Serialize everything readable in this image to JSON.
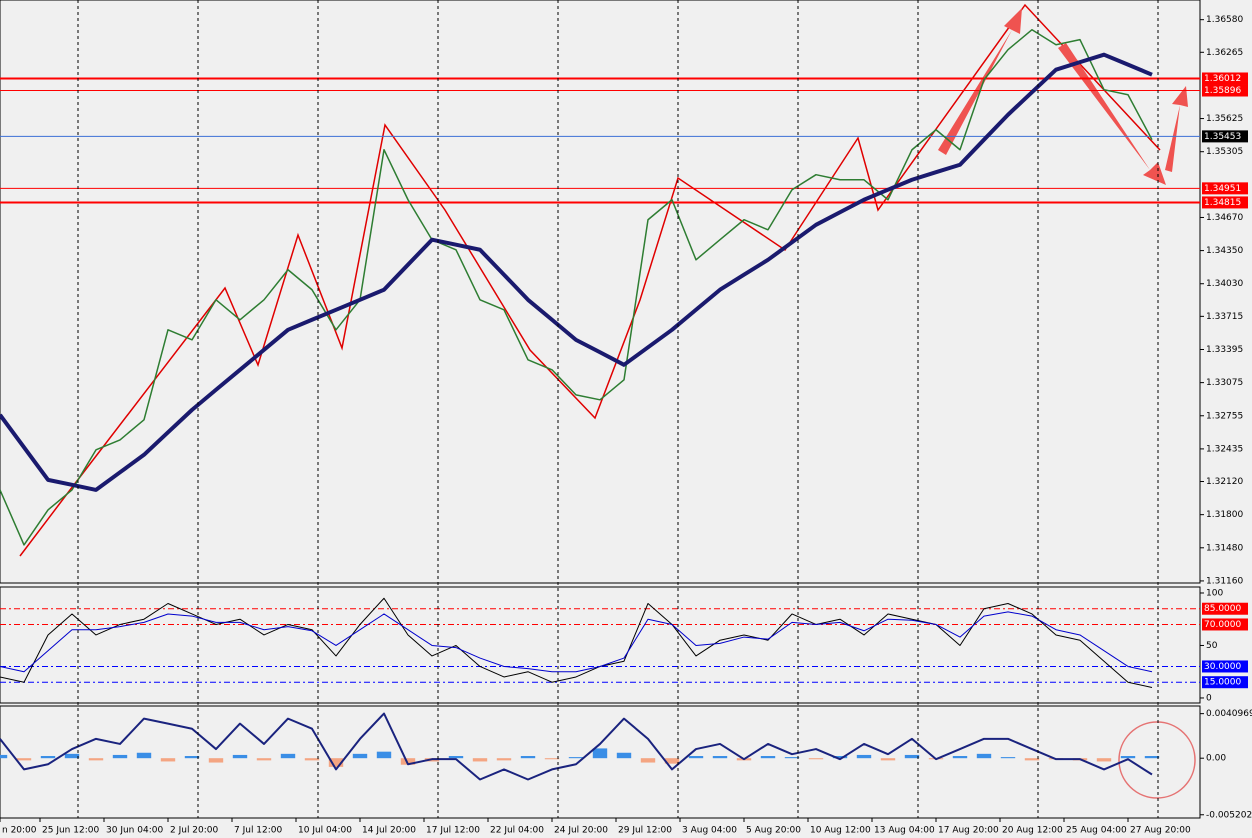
{
  "chart_data": [
    {
      "type": "line",
      "xlim": [
        0,
        300
      ],
      "ylim": [
        1.3114,
        1.3677
      ],
      "yticks": [
        {
          "value": 1.3658,
          "label": "1.36580"
        },
        {
          "value": 1.36265,
          "label": "1.36265"
        },
        {
          "value": 1.35625,
          "label": "1.35625"
        },
        {
          "value": 1.35305,
          "label": "1.35305"
        },
        {
          "value": 1.3467,
          "label": "1.34670"
        },
        {
          "value": 1.3435,
          "label": "1.34350"
        },
        {
          "value": 1.3403,
          "label": "1.34030"
        },
        {
          "value": 1.33715,
          "label": "1.33715"
        },
        {
          "value": 1.33395,
          "label": "1.33395"
        },
        {
          "value": 1.33075,
          "label": "1.33075"
        },
        {
          "value": 1.32755,
          "label": "1.32755"
        },
        {
          "value": 1.32435,
          "label": "1.32435"
        },
        {
          "value": 1.3212,
          "label": "1.32120"
        },
        {
          "value": 1.318,
          "label": "1.31800"
        },
        {
          "value": 1.3148,
          "label": "1.31480"
        },
        {
          "value": 1.3116,
          "label": "1.31160"
        }
      ],
      "levels": [
        {
          "value": 1.36012,
          "label": "1.36012",
          "color": "#ff0000"
        },
        {
          "value": 1.35896,
          "label": "1.35896",
          "color": "#ff0000"
        },
        {
          "value": 1.35453,
          "label": "1.35453",
          "color": "#000000"
        },
        {
          "value": 1.34951,
          "label": "1.34951",
          "color": "#ff0000"
        },
        {
          "value": 1.34815,
          "label": "1.34815",
          "color": "#ff0000"
        }
      ],
      "x": [
        0,
        6,
        12,
        18,
        24,
        30,
        36,
        42,
        48,
        54,
        60,
        66,
        72,
        78,
        84,
        90,
        96,
        102,
        108,
        114,
        120,
        126,
        132,
        138,
        144,
        150,
        156,
        162,
        168,
        174,
        180,
        186,
        192,
        198,
        204,
        210,
        216,
        222,
        228,
        234,
        240,
        246,
        252,
        258,
        264,
        270,
        276,
        282,
        288
      ],
      "series": [
        {
          "color": "#2e7d32",
          "width": 1.5,
          "values": [
            1.32039,
            1.31508,
            1.31846,
            1.32039,
            1.32426,
            1.32522,
            1.32716,
            1.33585,
            1.33488,
            1.33875,
            1.33682,
            1.33875,
            1.34165,
            1.33972,
            1.33585,
            1.33875,
            1.35324,
            1.34841,
            1.34455,
            1.34358,
            1.33875,
            1.33778,
            1.33295,
            1.33199,
            1.32957,
            1.32909,
            1.33102,
            1.34648,
            1.34841,
            1.34261,
            1.34455,
            1.34648,
            1.34551,
            1.34938,
            1.35083,
            1.35034,
            1.35034,
            1.34841,
            1.35324,
            1.35517,
            1.35324,
            1.36,
            1.3629,
            1.36483,
            1.36338,
            1.36387,
            1.35904,
            1.35855,
            1.35421
          ]
        },
        {
          "color": "#1a1a6e",
          "width": 4,
          "values": [
            1.32764,
            1.3245,
            1.32136,
            1.32088,
            1.32039,
            1.32209,
            1.32378,
            1.32595,
            1.32812,
            1.33006,
            1.33199,
            1.33392,
            1.33585,
            1.33682,
            1.33778,
            1.33875,
            1.33972,
            1.34214,
            1.34455,
            1.34407,
            1.34358,
            1.34117,
            1.33875,
            1.33682,
            1.33488,
            1.33368,
            1.33247,
            1.33416,
            1.33585,
            1.33779,
            1.33972,
            1.34117,
            1.34261,
            1.3443,
            1.34599,
            1.3472,
            1.34841,
            1.34938,
            1.35034,
            1.35107,
            1.35179,
            1.35421,
            1.35662,
            1.3588,
            1.36097,
            1.3617,
            1.36242,
            1.36146,
            1.36049
          ]
        }
      ]
    },
    {
      "type": "line",
      "xlim": [
        0,
        300
      ],
      "ylim": [
        -4.8,
        105.7
      ],
      "yticks": [
        100,
        50,
        0
      ],
      "levels": [
        {
          "value": 85,
          "label": "85.0000",
          "color": "#ff0000"
        },
        {
          "value": 70,
          "label": "70.0000",
          "color": "#ff0000"
        },
        {
          "value": 30,
          "label": "30.0000",
          "color": "#0000ff"
        },
        {
          "value": 15,
          "label": "15.0000",
          "color": "#0000ff"
        }
      ],
      "x": [
        0,
        6,
        12,
        18,
        24,
        30,
        36,
        42,
        48,
        54,
        60,
        66,
        72,
        78,
        84,
        90,
        96,
        102,
        108,
        114,
        120,
        126,
        132,
        138,
        144,
        150,
        156,
        162,
        168,
        174,
        180,
        186,
        192,
        198,
        204,
        210,
        216,
        222,
        228,
        234,
        240,
        246,
        252,
        258,
        264,
        270,
        276,
        282,
        288
      ],
      "series": [
        {
          "color": "#000000",
          "width": 1,
          "values": [
            20,
            15,
            60,
            80,
            60,
            70,
            75,
            90,
            80,
            70,
            75,
            60,
            70,
            65,
            40,
            70,
            95,
            60,
            40,
            50,
            30,
            20,
            25,
            15,
            20,
            30,
            35,
            90,
            70,
            40,
            55,
            60,
            55,
            80,
            70,
            75,
            60,
            80,
            75,
            70,
            50,
            85,
            90,
            80,
            60,
            55,
            35,
            15,
            10
          ]
        },
        {
          "color": "#0000cc",
          "width": 1,
          "values": [
            30,
            25,
            45,
            65,
            65,
            68,
            72,
            80,
            78,
            72,
            72,
            65,
            68,
            64,
            50,
            65,
            80,
            65,
            50,
            48,
            38,
            30,
            28,
            25,
            25,
            30,
            38,
            75,
            70,
            50,
            52,
            58,
            56,
            72,
            70,
            72,
            64,
            75,
            74,
            70,
            58,
            78,
            82,
            78,
            65,
            60,
            45,
            30,
            25
          ]
        }
      ]
    },
    {
      "type": "bar",
      "xlim": [
        0,
        300
      ],
      "ylim": [
        -0.0055,
        0.0048
      ],
      "yticks": [
        0.0040969,
        {
          "value": 0,
          "label": "0.00"
        },
        -0.005202
      ],
      "xticks": [
        {
          "value": 0,
          "label": "n 20:00"
        },
        {
          "value": 10,
          "label": "25 Jun 12:00"
        },
        {
          "value": 26,
          "label": "30 Jun 04:00"
        },
        {
          "value": 42,
          "label": "2 Jul 20:00"
        },
        {
          "value": 58,
          "label": "7 Jul 12:00"
        },
        {
          "value": 74,
          "label": "10 Jul 04:00"
        },
        {
          "value": 90,
          "label": "14 Jul 20:00"
        },
        {
          "value": 106,
          "label": "17 Jul 12:00"
        },
        {
          "value": 122,
          "label": "22 Jul 04:00"
        },
        {
          "value": 138,
          "label": "24 Jul 20:00"
        },
        {
          "value": 154,
          "label": "29 Jul 12:00"
        },
        {
          "value": 170,
          "label": "3 Aug 04:00"
        },
        {
          "value": 186,
          "label": "5 Aug 20:00"
        },
        {
          "value": 202,
          "label": "10 Aug 12:00"
        },
        {
          "value": 218,
          "label": "13 Aug 04:00"
        },
        {
          "value": 234,
          "label": "17 Aug 20:00"
        },
        {
          "value": 250,
          "label": "20 Aug 12:00"
        },
        {
          "value": 266,
          "label": "25 Aug 04:00"
        },
        {
          "value": 282,
          "label": "27 Aug 20:00"
        }
      ],
      "x": [
        0,
        6,
        12,
        18,
        24,
        30,
        36,
        42,
        48,
        54,
        60,
        66,
        72,
        78,
        84,
        90,
        96,
        102,
        108,
        114,
        120,
        126,
        132,
        138,
        144,
        150,
        156,
        162,
        168,
        174,
        180,
        186,
        192,
        198,
        204,
        210,
        216,
        222,
        228,
        234,
        240,
        246,
        252,
        258,
        264,
        270,
        276,
        282,
        288
      ],
      "bar_color": "#3a8ee6",
      "negative_color": "#f4a582",
      "values": [
        0.0003,
        -0.0002,
        0.0002,
        0.0004,
        -0.0002,
        0.0003,
        0.0005,
        -0.0003,
        0.0002,
        -0.0004,
        0.0003,
        -0.0002,
        0.0004,
        -0.0002,
        -0.0008,
        0.0004,
        0.0006,
        -0.0006,
        -0.0003,
        0.0002,
        -0.0003,
        -0.0002,
        0.0002,
        -0.0001,
        0.0001,
        0.0009,
        0.0005,
        -0.0004,
        -0.0005,
        0.0002,
        0.0002,
        -0.0002,
        0.0002,
        0.0001,
        -0.0001,
        0.0002,
        0.0003,
        -0.0002,
        0.0003,
        -0.0001,
        0.0002,
        0.0004,
        0.0001,
        -0.0002,
        -0.0001,
        -0.0002,
        -0.0003,
        0.0002,
        0.0002
      ],
      "series": [
        {
          "color": "#1a237e",
          "width": 2,
          "values": [
            0.00178,
            -0.00103,
            -0.00056,
            0.00084,
            0.00178,
            0.00131,
            0.00364,
            0.00318,
            0.00271,
            0.00084,
            0.00318,
            0.00131,
            0.00364,
            0.00271,
            -0.00103,
            0.00178,
            0.00411,
            -0.00056,
            -9e-05,
            -9e-05,
            -0.00196,
            -0.00103,
            -0.00196,
            -0.00103,
            -0.00056,
            0.00131,
            0.00364,
            0.00178,
            -0.00103,
            0.00084,
            0.00131,
            -9e-05,
            0.00131,
            0.00037,
            0.00084,
            -9e-05,
            0.00131,
            0.00037,
            0.00178,
            -9e-05,
            0.00084,
            0.00178,
            0.00178,
            0.00084,
            -9e-05,
            -9e-05,
            -0.00103,
            -9e-05,
            -0.0015
          ]
        }
      ]
    }
  ]
}
